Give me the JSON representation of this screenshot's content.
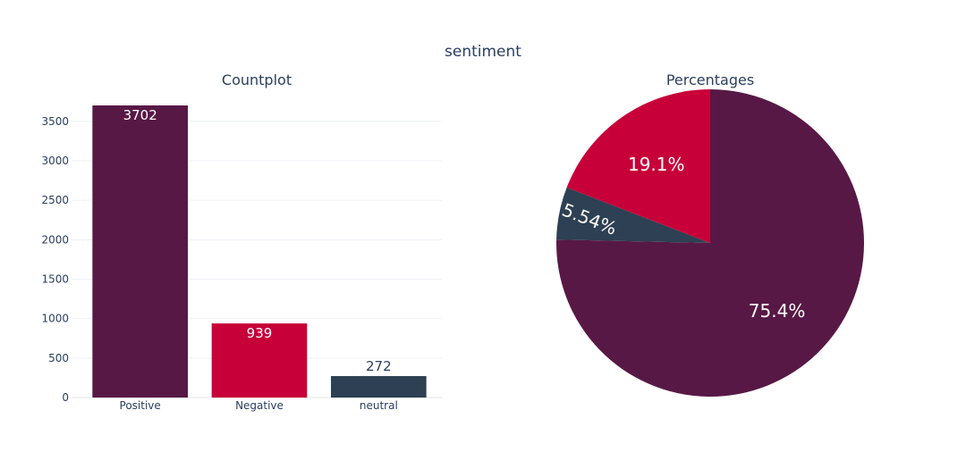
{
  "figure_title": "sentiment",
  "chart_data": [
    {
      "type": "bar",
      "title": "Countplot",
      "categories": [
        "Positive",
        "Negative",
        "neutral"
      ],
      "values": [
        3702,
        939,
        272
      ],
      "value_labels": [
        "3702",
        "939",
        "272"
      ],
      "label_positions": [
        "inside",
        "inside",
        "outside"
      ],
      "colors": [
        "#581845",
        "#C70039",
        "#2E4053"
      ],
      "ylim": [
        0,
        3702
      ],
      "yticks": [
        0,
        500,
        1000,
        1500,
        2000,
        2500,
        3000,
        3500
      ],
      "grid": true,
      "xlabel": "",
      "ylabel": ""
    },
    {
      "type": "pie",
      "title": "Percentages",
      "slices": [
        {
          "value": 3702,
          "percent_label": "75.4%",
          "color": "#581845"
        },
        {
          "value": 272,
          "percent_label": "5.54%",
          "color": "#2E4053"
        },
        {
          "value": 939,
          "percent_label": "19.1%",
          "color": "#C70039"
        }
      ],
      "direction": "clockwise",
      "start": "top"
    }
  ]
}
